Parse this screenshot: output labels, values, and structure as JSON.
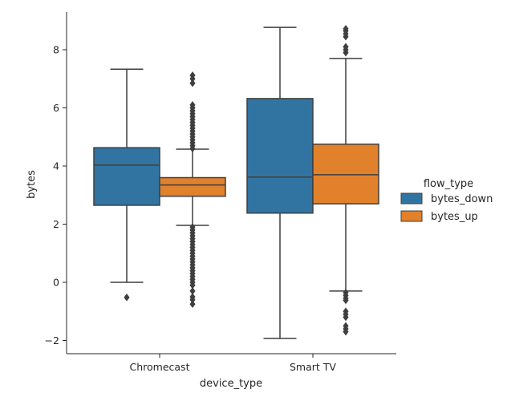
{
  "chart_data": {
    "type": "box",
    "xlabel": "device_type",
    "ylabel": "bytes",
    "categories": [
      "Chromecast",
      "Smart TV"
    ],
    "yticks": [
      -2,
      0,
      2,
      4,
      6,
      8
    ],
    "ylim": [
      -2.5,
      9.4
    ],
    "legend": {
      "title": "flow_type",
      "position": "right",
      "entries": [
        "bytes_down",
        "bytes_up"
      ]
    },
    "series": [
      {
        "name": "bytes_down",
        "color": "#3274a1",
        "boxes": [
          {
            "category": "Chromecast",
            "whisker_low": 0.0,
            "q1": 2.65,
            "median": 4.03,
            "q3": 4.63,
            "whisker_high": 7.33,
            "outliers": [
              -0.52
            ]
          },
          {
            "category": "Smart TV",
            "whisker_low": -1.93,
            "q1": 2.38,
            "median": 3.62,
            "q3": 6.32,
            "whisker_high": 8.77,
            "outliers": []
          }
        ]
      },
      {
        "name": "bytes_up",
        "color": "#e1812c",
        "boxes": [
          {
            "category": "Chromecast",
            "whisker_low": 1.96,
            "q1": 2.96,
            "median": 3.35,
            "q3": 3.6,
            "whisker_high": 4.58,
            "outliers": [
              4.6,
              4.7,
              4.8,
              4.9,
              5.0,
              5.1,
              5.2,
              5.3,
              5.4,
              5.5,
              5.6,
              5.7,
              5.8,
              5.9,
              6.0,
              6.1,
              6.85,
              7.0,
              7.12,
              1.9,
              1.8,
              1.7,
              1.6,
              1.5,
              1.4,
              1.3,
              1.2,
              1.1,
              1.0,
              0.9,
              0.8,
              0.7,
              0.6,
              0.5,
              0.4,
              0.3,
              0.2,
              0.1,
              0.0,
              -0.1,
              -0.3,
              -0.5,
              -0.6,
              -0.75
            ]
          },
          {
            "category": "Smart TV",
            "whisker_low": -0.3,
            "q1": 2.7,
            "median": 3.7,
            "q3": 4.75,
            "whisker_high": 7.7,
            "outliers": [
              7.9,
              8.0,
              8.1,
              8.45,
              8.55,
              8.65,
              8.72,
              -0.35,
              -0.45,
              -0.55,
              -0.62,
              -1.0,
              -1.1,
              -1.2,
              -1.5,
              -1.6,
              -1.7
            ]
          }
        ]
      }
    ]
  }
}
